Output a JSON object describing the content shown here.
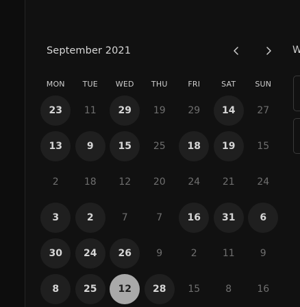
{
  "calendar": {
    "month_label": "September 2021",
    "prev_icon": "chevron-left-icon",
    "next_icon": "chevron-right-icon",
    "side_label": "W",
    "weekdays": [
      "MON",
      "TUE",
      "WED",
      "THU",
      "FRI",
      "SAT",
      "SUN"
    ],
    "weeks": [
      [
        {
          "label": "23",
          "state": "available"
        },
        {
          "label": "11",
          "state": "muted"
        },
        {
          "label": "29",
          "state": "available"
        },
        {
          "label": "19",
          "state": "muted"
        },
        {
          "label": "29",
          "state": "muted"
        },
        {
          "label": "14",
          "state": "available"
        },
        {
          "label": "27",
          "state": "muted"
        }
      ],
      [
        {
          "label": "13",
          "state": "available"
        },
        {
          "label": "9",
          "state": "available"
        },
        {
          "label": "15",
          "state": "available"
        },
        {
          "label": "25",
          "state": "muted"
        },
        {
          "label": "18",
          "state": "available"
        },
        {
          "label": "19",
          "state": "available"
        },
        {
          "label": "15",
          "state": "muted"
        }
      ],
      [
        {
          "label": "2",
          "state": "muted"
        },
        {
          "label": "18",
          "state": "muted"
        },
        {
          "label": "12",
          "state": "muted"
        },
        {
          "label": "20",
          "state": "muted"
        },
        {
          "label": "24",
          "state": "muted"
        },
        {
          "label": "21",
          "state": "muted"
        },
        {
          "label": "24",
          "state": "muted"
        }
      ],
      [
        {
          "label": "3",
          "state": "available"
        },
        {
          "label": "2",
          "state": "available"
        },
        {
          "label": "7",
          "state": "muted"
        },
        {
          "label": "7",
          "state": "muted"
        },
        {
          "label": "16",
          "state": "available"
        },
        {
          "label": "31",
          "state": "available"
        },
        {
          "label": "6",
          "state": "available"
        }
      ],
      [
        {
          "label": "30",
          "state": "available"
        },
        {
          "label": "24",
          "state": "available"
        },
        {
          "label": "26",
          "state": "available"
        },
        {
          "label": "9",
          "state": "muted"
        },
        {
          "label": "2",
          "state": "muted"
        },
        {
          "label": "11",
          "state": "muted"
        },
        {
          "label": "9",
          "state": "muted"
        }
      ],
      [
        {
          "label": "8",
          "state": "available"
        },
        {
          "label": "25",
          "state": "available"
        },
        {
          "label": "12",
          "state": "selected"
        },
        {
          "label": "28",
          "state": "available"
        },
        {
          "label": "15",
          "state": "muted"
        },
        {
          "label": "8",
          "state": "muted"
        },
        {
          "label": "16",
          "state": "muted"
        }
      ]
    ]
  },
  "colors": {
    "background": "#111111",
    "available_day_fill": "#1f1f1f",
    "selected_day_fill": "#a9a9a9",
    "muted_text": "#6f6f6f",
    "primary_text": "#d6d6d6"
  }
}
